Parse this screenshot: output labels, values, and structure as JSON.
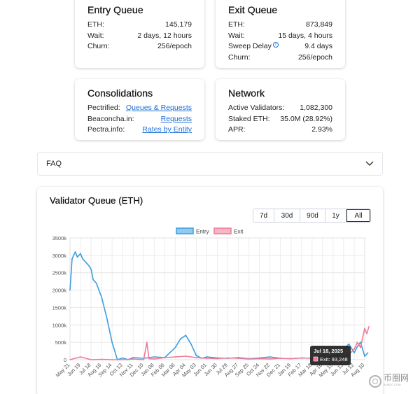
{
  "entry_queue": {
    "title": "Entry Queue",
    "rows": [
      {
        "label": "ETH:",
        "value": "145,179"
      },
      {
        "label": "Wait:",
        "value": "2 days, 12 hours"
      },
      {
        "label": "Churn:",
        "value": "256/epoch"
      }
    ]
  },
  "exit_queue": {
    "title": "Exit Queue",
    "rows": [
      {
        "label": "ETH:",
        "value": "873,849"
      },
      {
        "label": "Wait:",
        "value": "15 days, 4 hours"
      },
      {
        "label": "Sweep Delay",
        "value": "9.4 days"
      },
      {
        "label": "Churn:",
        "value": "256/epoch"
      }
    ],
    "info_glyph": "i"
  },
  "consolidations": {
    "title": "Consolidations",
    "rows": [
      {
        "label": "Pectrified:",
        "value": "Queues & Requests"
      },
      {
        "label": "Beaconcha.in:",
        "value": "Requests"
      },
      {
        "label": "Pectra.info:",
        "value": "Rates by Entity"
      }
    ]
  },
  "network": {
    "title": "Network",
    "rows": [
      {
        "label": "Active Validators:",
        "value": "1,082,300"
      },
      {
        "label": "Staked ETH:",
        "value": "35.0M (28.92%)"
      },
      {
        "label": "APR:",
        "value": "2.93%"
      }
    ]
  },
  "faq": {
    "label": "FAQ",
    "icon": "chevron-down-icon"
  },
  "chart_card": {
    "title": "Validator Queue (ETH)",
    "ranges": [
      "7d",
      "30d",
      "90d",
      "1y",
      "All"
    ],
    "active_range": "All"
  },
  "tooltip": {
    "date": "Jul 18, 2025",
    "text": "Exit: 93,248"
  },
  "watermark": {
    "text": "币圈网",
    "subtext": "ALIBTC.COM"
  },
  "colors": {
    "entry": "#3b9ee0",
    "exit": "#f07a96",
    "link": "#1a6fd6"
  },
  "chart_data": {
    "type": "line",
    "x_ticks": [
      "May 21",
      "Jun 19",
      "Jul 18",
      "Aug 16",
      "Sep 14",
      "Oct 13",
      "Nov 11",
      "Dec 10",
      "Jan 08",
      "Feb 06",
      "Mar 06",
      "Apr 04",
      "May 03",
      "Jun 01",
      "Jun 30",
      "Jul 29",
      "Aug 27",
      "Sep 25",
      "Oct 24",
      "Nov 22",
      "Dec 21",
      "Jan 19",
      "Feb 17",
      "Mar 18",
      "Apr 16",
      "May 15",
      "Jun 13",
      "Jul 12",
      "Aug 10"
    ],
    "y_ticks": [
      "0",
      "500k",
      "1000k",
      "1500k",
      "2000k",
      "2500k",
      "3000k",
      "3500k"
    ],
    "ylim": [
      0,
      3500000
    ],
    "grid": true,
    "legend_position": "top",
    "series": [
      {
        "name": "Entry",
        "x_index": [
          0,
          0.2,
          0.5,
          0.7,
          1,
          1.2,
          1.5,
          1.8,
          2,
          2.2,
          2.5,
          3,
          3.5,
          4,
          4.5,
          5,
          5.5,
          6,
          7,
          8,
          9,
          10,
          10.5,
          11,
          11.5,
          12,
          12.5,
          13,
          14,
          15,
          16,
          17,
          18,
          19,
          20,
          21,
          22,
          23,
          24,
          24.5,
          25,
          25.5,
          26,
          26.5,
          27,
          27.3,
          27.6,
          28,
          28.3
        ],
        "values": [
          2000000,
          2900000,
          3100000,
          2950000,
          3050000,
          2900000,
          2800000,
          2700000,
          2600000,
          2300000,
          2200000,
          1800000,
          1200000,
          500000,
          0,
          50000,
          0,
          60000,
          40000,
          80000,
          60000,
          350000,
          600000,
          700000,
          450000,
          120000,
          40000,
          80000,
          50000,
          40000,
          60000,
          30000,
          50000,
          80000,
          40000,
          30000,
          50000,
          40000,
          120000,
          80000,
          100000,
          150000,
          300000,
          450000,
          200000,
          380000,
          500000,
          100000,
          200000
        ]
      },
      {
        "name": "Exit",
        "x_index": [
          0,
          1,
          2,
          3,
          4,
          5,
          6,
          7,
          7.3,
          7.5,
          8,
          9,
          10,
          11,
          12,
          13,
          14,
          15,
          16,
          17,
          18,
          19,
          20,
          21,
          22,
          23,
          24,
          25,
          25.5,
          26,
          26.5,
          27,
          27.3,
          27.6,
          28,
          28.2,
          28.4
        ],
        "values": [
          0,
          80000,
          0,
          10000,
          0,
          0,
          20000,
          0,
          500000,
          30000,
          20000,
          60000,
          80000,
          100000,
          60000,
          40000,
          30000,
          50000,
          40000,
          20000,
          30000,
          25000,
          40000,
          30000,
          50000,
          40000,
          60000,
          80000,
          100000,
          60000,
          150000,
          300000,
          500000,
          350000,
          900000,
          750000,
          950000
        ]
      }
    ]
  }
}
